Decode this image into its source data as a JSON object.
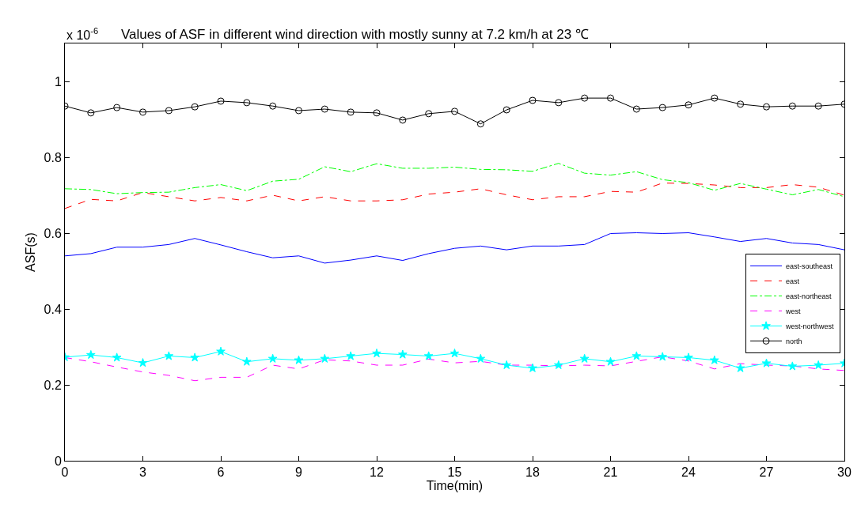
{
  "chart_data": {
    "type": "line",
    "title": "Values of ASF in different wind direction with mostly sunny at 7.2 km/h at 23 ℃",
    "xlabel": "Time(min)",
    "ylabel": "ASF(s)",
    "annotations": [
      "x 10$^{-6}$"
    ],
    "x": [
      0,
      1,
      2,
      3,
      4,
      5,
      6,
      7,
      8,
      9,
      10,
      11,
      12,
      13,
      14,
      15,
      16,
      17,
      18,
      19,
      20,
      21,
      22,
      23,
      24,
      25,
      26,
      27,
      28,
      29,
      30
    ],
    "xlim": [
      0,
      30
    ],
    "xticks": [
      0,
      3,
      6,
      9,
      12,
      15,
      18,
      21,
      24,
      27,
      30
    ],
    "ylim": [
      0,
      1.1
    ],
    "yticks": [
      0,
      0.2,
      0.4,
      0.6,
      0.8,
      1
    ],
    "grid": false,
    "legend": "bottom right",
    "series": [
      {
        "name": "east-southeast",
        "color": "#0000ff",
        "line_style": "solid",
        "marker": "none",
        "values": [
          0.54,
          0.546,
          0.563,
          0.563,
          0.57,
          0.586,
          0.569,
          0.551,
          0.535,
          0.54,
          0.521,
          0.529,
          0.54,
          0.528,
          0.546,
          0.56,
          0.566,
          0.556,
          0.566,
          0.566,
          0.57,
          0.599,
          0.601,
          0.599,
          0.601,
          0.59,
          0.578,
          0.586,
          0.574,
          0.57,
          0.556
        ]
      },
      {
        "name": "east",
        "color": "#ff0000",
        "line_style": "dashed",
        "marker": "none",
        "values": [
          0.665,
          0.689,
          0.685,
          0.707,
          0.696,
          0.685,
          0.694,
          0.685,
          0.7,
          0.685,
          0.696,
          0.685,
          0.685,
          0.688,
          0.703,
          0.708,
          0.717,
          0.701,
          0.688,
          0.696,
          0.696,
          0.71,
          0.708,
          0.732,
          0.731,
          0.727,
          0.72,
          0.72,
          0.728,
          0.721,
          0.7
        ]
      },
      {
        "name": "east-northeast",
        "color": "#00ff00",
        "line_style": "dashdot",
        "marker": "none",
        "values": [
          0.717,
          0.715,
          0.704,
          0.707,
          0.708,
          0.72,
          0.728,
          0.712,
          0.737,
          0.742,
          0.775,
          0.762,
          0.783,
          0.771,
          0.771,
          0.774,
          0.768,
          0.767,
          0.763,
          0.784,
          0.758,
          0.753,
          0.762,
          0.741,
          0.733,
          0.713,
          0.731,
          0.716,
          0.701,
          0.715,
          0.696
        ]
      },
      {
        "name": "west",
        "color": "#ff00ff",
        "line_style": "dashed",
        "marker": "none",
        "values": [
          0.272,
          0.261,
          0.247,
          0.234,
          0.225,
          0.211,
          0.22,
          0.22,
          0.252,
          0.242,
          0.266,
          0.263,
          0.252,
          0.252,
          0.268,
          0.258,
          0.262,
          0.252,
          0.252,
          0.25,
          0.252,
          0.25,
          0.262,
          0.274,
          0.263,
          0.242,
          0.256,
          0.252,
          0.25,
          0.242,
          0.238
        ]
      },
      {
        "name": "west-northwest",
        "color": "#00ffff",
        "line_style": "solid",
        "marker": "star",
        "values": [
          0.273,
          0.279,
          0.272,
          0.258,
          0.276,
          0.272,
          0.288,
          0.261,
          0.269,
          0.265,
          0.269,
          0.276,
          0.283,
          0.28,
          0.276,
          0.283,
          0.269,
          0.252,
          0.244,
          0.252,
          0.269,
          0.261,
          0.276,
          0.274,
          0.272,
          0.265,
          0.244,
          0.257,
          0.249,
          0.252,
          0.257
        ]
      },
      {
        "name": "north",
        "color": "#000000",
        "line_style": "solid",
        "marker": "circle",
        "values": [
          0.935,
          0.917,
          0.931,
          0.919,
          0.923,
          0.933,
          0.948,
          0.944,
          0.935,
          0.923,
          0.927,
          0.919,
          0.917,
          0.898,
          0.915,
          0.921,
          0.888,
          0.925,
          0.95,
          0.944,
          0.956,
          0.956,
          0.927,
          0.931,
          0.938,
          0.956,
          0.94,
          0.933,
          0.935,
          0.935,
          0.94
        ]
      }
    ]
  }
}
